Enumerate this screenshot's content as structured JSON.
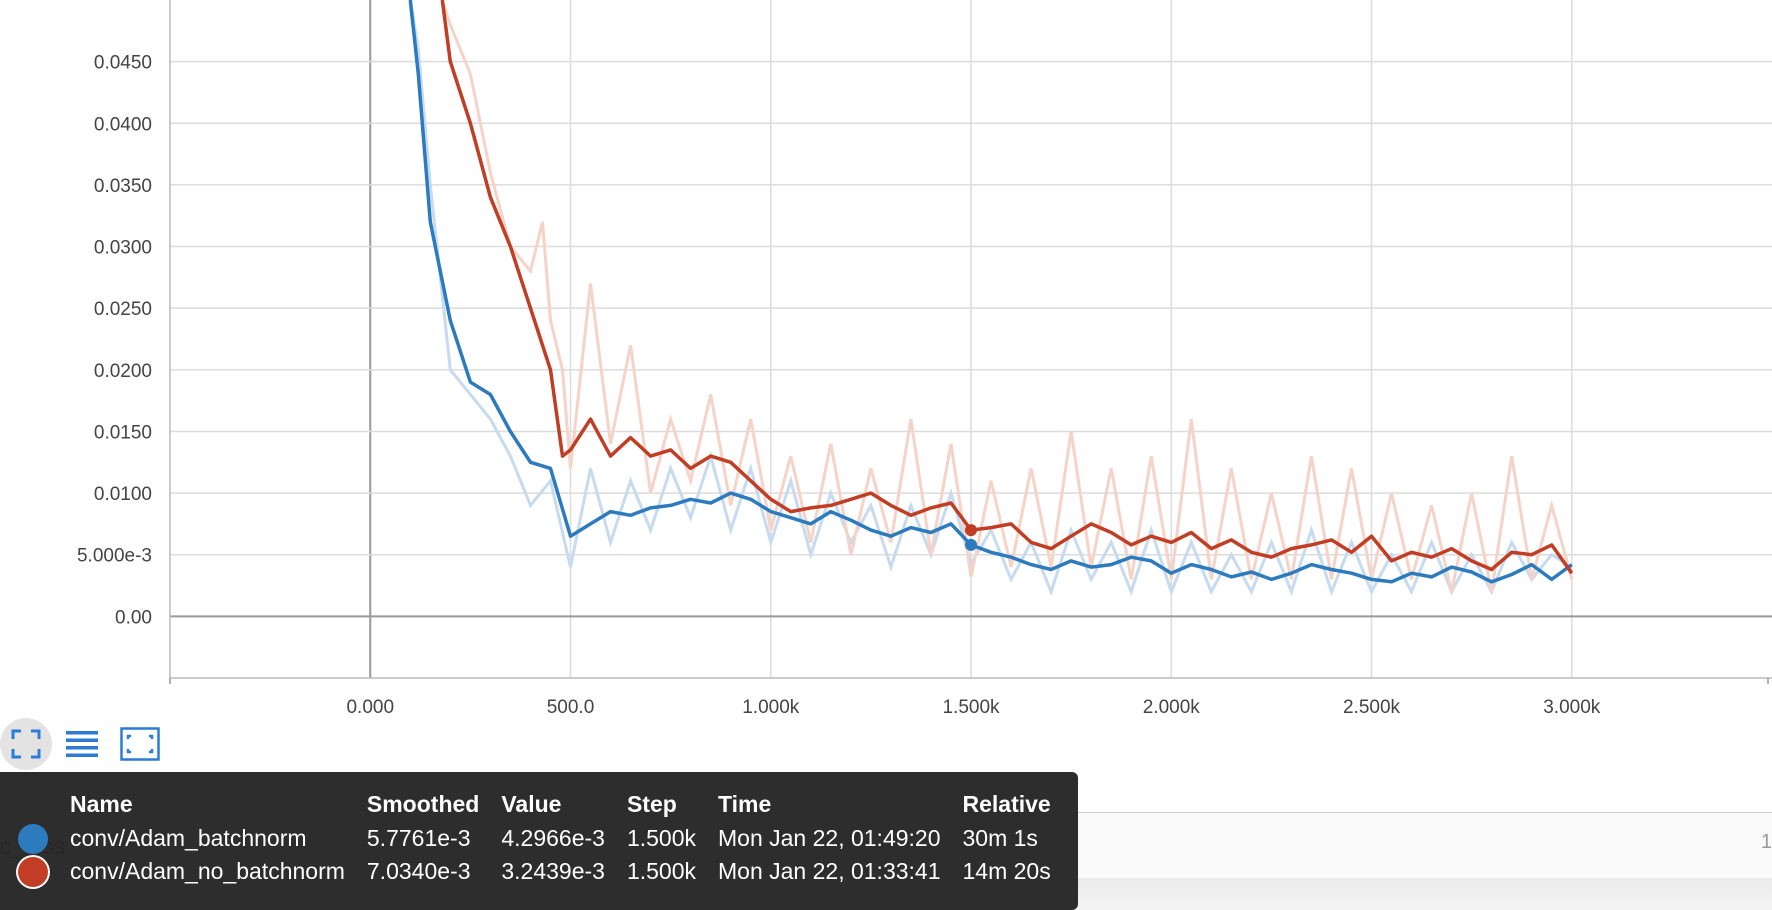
{
  "chart_data": {
    "type": "line",
    "x_ticks": [
      "0.000",
      "500.0",
      "1.000k",
      "1.500k",
      "2.000k",
      "2.500k",
      "3.000k"
    ],
    "y_ticks": [
      "0.00",
      "5.000e-3",
      "0.0100",
      "0.0150",
      "0.0200",
      "0.0250",
      "0.0300",
      "0.0350",
      "0.0400",
      "0.0450"
    ],
    "xlim": [
      -500,
      3500
    ],
    "ylim": [
      -0.005,
      0.05
    ],
    "grid": true,
    "hover_step": 1500,
    "series": [
      {
        "name": "conv/Adam_batchnorm",
        "color": "#2c7bbf",
        "raw_color": "#c6dbef",
        "x": [
          100,
          120,
          150,
          200,
          250,
          300,
          350,
          400,
          450,
          500,
          550,
          600,
          650,
          700,
          750,
          800,
          850,
          900,
          950,
          1000,
          1050,
          1100,
          1150,
          1200,
          1250,
          1300,
          1350,
          1400,
          1450,
          1500,
          1550,
          1600,
          1650,
          1700,
          1750,
          1800,
          1850,
          1900,
          1950,
          2000,
          2050,
          2100,
          2150,
          2200,
          2250,
          2300,
          2350,
          2400,
          2450,
          2500,
          2550,
          2600,
          2650,
          2700,
          2750,
          2800,
          2850,
          2900,
          2950,
          3000
        ],
        "smoothed": [
          0.05,
          0.044,
          0.032,
          0.024,
          0.019,
          0.018,
          0.015,
          0.0125,
          0.012,
          0.0065,
          0.0075,
          0.0085,
          0.0082,
          0.0088,
          0.009,
          0.0095,
          0.0092,
          0.01,
          0.0095,
          0.0085,
          0.008,
          0.0075,
          0.0085,
          0.0078,
          0.007,
          0.0065,
          0.0072,
          0.0068,
          0.0075,
          0.0058,
          0.0052,
          0.0048,
          0.0042,
          0.0038,
          0.0045,
          0.004,
          0.0042,
          0.0048,
          0.0045,
          0.0035,
          0.0042,
          0.0038,
          0.0032,
          0.0036,
          0.003,
          0.0035,
          0.0042,
          0.0038,
          0.0035,
          0.003,
          0.0028,
          0.0035,
          0.0032,
          0.004,
          0.0036,
          0.0028,
          0.0034,
          0.0042,
          0.003,
          0.0042
        ],
        "raw": [
          0.05,
          0.046,
          0.035,
          0.02,
          0.018,
          0.016,
          0.013,
          0.009,
          0.011,
          0.004,
          0.012,
          0.006,
          0.011,
          0.007,
          0.012,
          0.008,
          0.013,
          0.007,
          0.012,
          0.006,
          0.011,
          0.005,
          0.01,
          0.006,
          0.009,
          0.004,
          0.009,
          0.005,
          0.01,
          0.0043,
          0.007,
          0.003,
          0.006,
          0.002,
          0.007,
          0.003,
          0.006,
          0.002,
          0.007,
          0.002,
          0.006,
          0.002,
          0.005,
          0.002,
          0.006,
          0.002,
          0.007,
          0.002,
          0.006,
          0.002,
          0.005,
          0.002,
          0.006,
          0.002,
          0.005,
          0.002,
          0.006,
          0.003,
          0.005,
          0.004
        ]
      },
      {
        "name": "conv/Adam_no_batchnorm",
        "color": "#c13d24",
        "raw_color": "#f5d3c8",
        "x": [
          180,
          200,
          250,
          300,
          350,
          400,
          430,
          450,
          480,
          500,
          550,
          600,
          650,
          700,
          750,
          800,
          850,
          900,
          950,
          1000,
          1050,
          1100,
          1150,
          1200,
          1250,
          1300,
          1350,
          1400,
          1450,
          1500,
          1550,
          1600,
          1650,
          1700,
          1750,
          1800,
          1850,
          1900,
          1950,
          2000,
          2050,
          2100,
          2150,
          2200,
          2250,
          2300,
          2350,
          2400,
          2450,
          2500,
          2550,
          2600,
          2650,
          2700,
          2750,
          2800,
          2850,
          2900,
          2950,
          3000
        ],
        "smoothed": [
          0.05,
          0.045,
          0.04,
          0.034,
          0.03,
          0.025,
          0.022,
          0.02,
          0.013,
          0.0135,
          0.016,
          0.013,
          0.0145,
          0.013,
          0.0135,
          0.012,
          0.013,
          0.0125,
          0.011,
          0.0095,
          0.0085,
          0.0088,
          0.009,
          0.0095,
          0.01,
          0.009,
          0.0082,
          0.0088,
          0.0092,
          0.007,
          0.0072,
          0.0075,
          0.006,
          0.0055,
          0.0065,
          0.0075,
          0.0068,
          0.0058,
          0.0065,
          0.006,
          0.0068,
          0.0055,
          0.0062,
          0.0052,
          0.0048,
          0.0055,
          0.0058,
          0.0062,
          0.0052,
          0.0065,
          0.0045,
          0.0052,
          0.0048,
          0.0055,
          0.0045,
          0.0038,
          0.0052,
          0.005,
          0.0058,
          0.0035
        ],
        "raw": [
          0.05,
          0.048,
          0.044,
          0.036,
          0.03,
          0.028,
          0.032,
          0.024,
          0.02,
          0.012,
          0.027,
          0.014,
          0.022,
          0.01,
          0.016,
          0.011,
          0.018,
          0.009,
          0.016,
          0.007,
          0.013,
          0.006,
          0.014,
          0.005,
          0.012,
          0.006,
          0.016,
          0.005,
          0.014,
          0.0032,
          0.011,
          0.004,
          0.012,
          0.004,
          0.015,
          0.004,
          0.012,
          0.003,
          0.013,
          0.003,
          0.016,
          0.003,
          0.012,
          0.003,
          0.01,
          0.003,
          0.013,
          0.003,
          0.012,
          0.003,
          0.01,
          0.003,
          0.009,
          0.002,
          0.01,
          0.002,
          0.013,
          0.003,
          0.009,
          0.003
        ]
      }
    ]
  },
  "tooltip": {
    "headers": [
      "Name",
      "Smoothed",
      "Value",
      "Step",
      "Time",
      "Relative"
    ],
    "rows": [
      {
        "color": "#2c7bbf",
        "name": "conv/Adam_batchnorm",
        "smoothed": "5.7761e-3",
        "value": "4.2966e-3",
        "step": "1.500k",
        "time": "Mon Jan 22, 01:49:20",
        "relative": "30m 1s"
      },
      {
        "color": "#c13d24",
        "name": "conv/Adam_no_batchnorm",
        "smoothed": "7.0340e-3",
        "value": "3.2439e-3",
        "step": "1.500k",
        "time": "Mon Jan 22, 01:33:41",
        "relative": "14m 20s"
      }
    ]
  },
  "background": {
    "partial_label": "c_loss",
    "partial_number": "1"
  },
  "toolbar": {
    "icons": [
      "fullscreen-icon",
      "list-icon",
      "fit-domain-icon"
    ]
  }
}
